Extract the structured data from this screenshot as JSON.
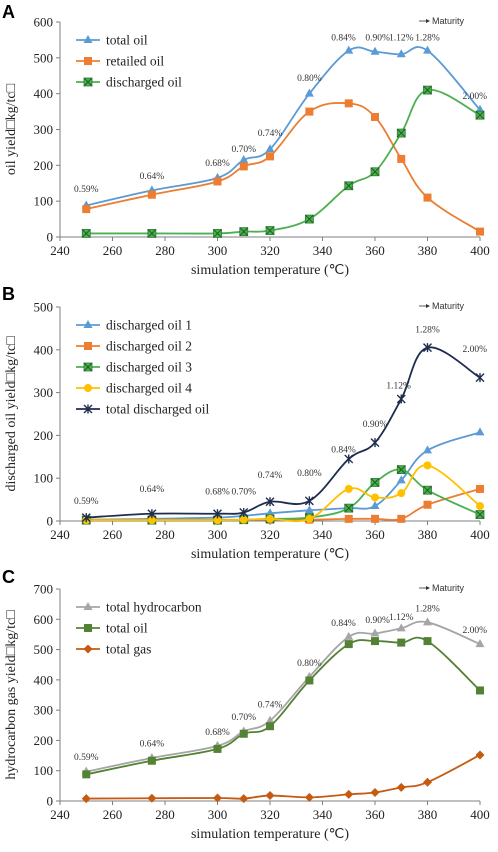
{
  "maturity_label": "Maturity",
  "colors": {
    "blue": "#5b9bd5",
    "orange": "#ed7d31",
    "green": "#4caf50",
    "gold": "#ffc000",
    "navy": "#1f2d4e",
    "gray": "#a5a5a5",
    "dark_green": "#548235",
    "rust": "#c55a11"
  },
  "chart_data": [
    {
      "panel_label": "A",
      "type": "line",
      "xlabel": "simulation temperature (℃)",
      "ylabel": "oil yield□kg/tc□",
      "xlim": [
        240,
        400
      ],
      "ylim": [
        0,
        600
      ],
      "xticks": [
        240,
        260,
        280,
        300,
        320,
        340,
        360,
        380,
        400
      ],
      "yticks": [
        0,
        100,
        200,
        300,
        400,
        500,
        600
      ],
      "legend_position": "top-left",
      "series": [
        {
          "name": "total oil",
          "color": "#5b9bd5",
          "marker": "triangle",
          "points": [
            [
              250,
              88
            ],
            [
              275,
              130
            ],
            [
              300,
              165
            ],
            [
              310,
              215
            ],
            [
              320,
              245
            ],
            [
              335,
              400
            ],
            [
              350,
              520
            ],
            [
              360,
              517
            ],
            [
              370,
              510
            ],
            [
              380,
              520
            ],
            [
              400,
              355
            ]
          ]
        },
        {
          "name": "retailed oil",
          "color": "#ed7d31",
          "marker": "square",
          "points": [
            [
              250,
              78
            ],
            [
              275,
              118
            ],
            [
              300,
              155
            ],
            [
              310,
              197
            ],
            [
              320,
              225
            ],
            [
              335,
              350
            ],
            [
              350,
              373
            ],
            [
              360,
              335
            ],
            [
              370,
              218
            ],
            [
              380,
              110
            ],
            [
              400,
              15
            ]
          ]
        },
        {
          "name": "discharged oil",
          "color": "#4caf50",
          "marker": "xsquare",
          "points": [
            [
              250,
              10
            ],
            [
              275,
              10
            ],
            [
              300,
              10
            ],
            [
              310,
              15
            ],
            [
              320,
              18
            ],
            [
              335,
              50
            ],
            [
              350,
              143
            ],
            [
              360,
              182
            ],
            [
              370,
              290
            ],
            [
              380,
              410
            ],
            [
              400,
              340
            ]
          ]
        }
      ],
      "annotations": [
        {
          "text": "0.59%",
          "x": 250,
          "y": 125
        },
        {
          "text": "0.64%",
          "x": 275,
          "y": 162
        },
        {
          "text": "0.68%",
          "x": 300,
          "y": 198
        },
        {
          "text": "0.70%",
          "x": 310,
          "y": 237
        },
        {
          "text": "0.74%",
          "x": 320,
          "y": 282
        },
        {
          "text": "0.80%",
          "x": 335,
          "y": 435
        },
        {
          "text": "0.84%",
          "x": 348,
          "y": 548
        },
        {
          "text": "0.90%",
          "x": 361,
          "y": 548
        },
        {
          "text": "1.12%",
          "x": 370,
          "y": 548
        },
        {
          "text": "1.28%",
          "x": 380,
          "y": 548
        },
        {
          "text": "2.00%",
          "x": 398,
          "y": 385
        }
      ]
    },
    {
      "panel_label": "B",
      "type": "line",
      "xlabel": "simulation temperature (℃)",
      "ylabel": "discharged oil yield□kg/tc□",
      "xlim": [
        240,
        400
      ],
      "ylim": [
        0,
        500
      ],
      "xticks": [
        240,
        260,
        280,
        300,
        320,
        340,
        360,
        380,
        400
      ],
      "yticks": [
        0,
        100,
        200,
        300,
        400,
        500
      ],
      "legend_position": "top-left",
      "series": [
        {
          "name": "discharged oil 1",
          "color": "#5b9bd5",
          "marker": "triangle",
          "points": [
            [
              250,
              3
            ],
            [
              275,
              5
            ],
            [
              300,
              8
            ],
            [
              310,
              12
            ],
            [
              320,
              18
            ],
            [
              335,
              25
            ],
            [
              350,
              30
            ],
            [
              360,
              35
            ],
            [
              370,
              95
            ],
            [
              380,
              165
            ],
            [
              400,
              207
            ]
          ]
        },
        {
          "name": "discharged oil 2",
          "color": "#ed7d31",
          "marker": "square",
          "points": [
            [
              250,
              3
            ],
            [
              275,
              3
            ],
            [
              300,
              3
            ],
            [
              310,
              3
            ],
            [
              320,
              3
            ],
            [
              335,
              3
            ],
            [
              350,
              5
            ],
            [
              360,
              5
            ],
            [
              370,
              5
            ],
            [
              380,
              38
            ],
            [
              400,
              75
            ]
          ]
        },
        {
          "name": "discharged oil 3",
          "color": "#4caf50",
          "marker": "xsquare",
          "points": [
            [
              250,
              2
            ],
            [
              275,
              2
            ],
            [
              300,
              2
            ],
            [
              310,
              3
            ],
            [
              320,
              5
            ],
            [
              335,
              8
            ],
            [
              350,
              30
            ],
            [
              360,
              90
            ],
            [
              370,
              120
            ],
            [
              380,
              72
            ],
            [
              400,
              15
            ]
          ]
        },
        {
          "name": "discharged oil 4",
          "color": "#ffc000",
          "marker": "circle",
          "points": [
            [
              250,
              2
            ],
            [
              275,
              2
            ],
            [
              300,
              2
            ],
            [
              310,
              3
            ],
            [
              320,
              5
            ],
            [
              335,
              5
            ],
            [
              350,
              75
            ],
            [
              360,
              55
            ],
            [
              370,
              65
            ],
            [
              380,
              130
            ],
            [
              400,
              35
            ]
          ]
        },
        {
          "name": "total discharged oil",
          "color": "#1f2d4e",
          "marker": "star",
          "points": [
            [
              250,
              8
            ],
            [
              275,
              17
            ],
            [
              300,
              17
            ],
            [
              310,
              20
            ],
            [
              320,
              45
            ],
            [
              335,
              47
            ],
            [
              350,
              145
            ],
            [
              360,
              183
            ],
            [
              370,
              285
            ],
            [
              380,
              405
            ],
            [
              400,
              335
            ]
          ]
        }
      ],
      "annotations": [
        {
          "text": "0.59%",
          "x": 250,
          "y": 40
        },
        {
          "text": "0.64%",
          "x": 275,
          "y": 68
        },
        {
          "text": "0.68%",
          "x": 300,
          "y": 62
        },
        {
          "text": "0.70%",
          "x": 310,
          "y": 62
        },
        {
          "text": "0.74%",
          "x": 320,
          "y": 100
        },
        {
          "text": "0.80%",
          "x": 335,
          "y": 105
        },
        {
          "text": "0.84%",
          "x": 348,
          "y": 160
        },
        {
          "text": "0.90%",
          "x": 360,
          "y": 220
        },
        {
          "text": "1.12%",
          "x": 369,
          "y": 310
        },
        {
          "text": "1.28%",
          "x": 380,
          "y": 440
        },
        {
          "text": "2.00%",
          "x": 398,
          "y": 395
        }
      ]
    },
    {
      "panel_label": "C",
      "type": "line",
      "xlabel": "simulation temperature (℃)",
      "ylabel": "hydrocarbon gas yield□kg/tc□",
      "xlim": [
        240,
        400
      ],
      "ylim": [
        0,
        700
      ],
      "xticks": [
        240,
        260,
        280,
        300,
        320,
        340,
        360,
        380,
        400
      ],
      "yticks": [
        0,
        100,
        200,
        300,
        400,
        500,
        600,
        700
      ],
      "legend_position": "top-left",
      "series": [
        {
          "name": "total hydrocarbon",
          "color": "#a5a5a5",
          "marker": "triangle",
          "points": [
            [
              250,
              97
            ],
            [
              275,
              142
            ],
            [
              300,
              182
            ],
            [
              310,
              230
            ],
            [
              320,
              265
            ],
            [
              335,
              410
            ],
            [
              350,
              542
            ],
            [
              360,
              553
            ],
            [
              370,
              570
            ],
            [
              380,
              590
            ],
            [
              400,
              518
            ]
          ]
        },
        {
          "name": "total oil",
          "color": "#548235",
          "marker": "square",
          "points": [
            [
              250,
              88
            ],
            [
              275,
              133
            ],
            [
              300,
              172
            ],
            [
              310,
              222
            ],
            [
              320,
              247
            ],
            [
              335,
              398
            ],
            [
              350,
              518
            ],
            [
              360,
              528
            ],
            [
              370,
              523
            ],
            [
              380,
              528
            ],
            [
              400,
              365
            ]
          ]
        },
        {
          "name": "total gas",
          "color": "#c55a11",
          "marker": "diamond",
          "points": [
            [
              250,
              8
            ],
            [
              275,
              9
            ],
            [
              300,
              10
            ],
            [
              310,
              8
            ],
            [
              320,
              18
            ],
            [
              335,
              12
            ],
            [
              350,
              22
            ],
            [
              360,
              28
            ],
            [
              370,
              45
            ],
            [
              380,
              62
            ],
            [
              400,
              152
            ]
          ]
        }
      ],
      "annotations": [
        {
          "text": "0.59%",
          "x": 250,
          "y": 135
        },
        {
          "text": "0.64%",
          "x": 275,
          "y": 180
        },
        {
          "text": "0.68%",
          "x": 300,
          "y": 218
        },
        {
          "text": "0.70%",
          "x": 310,
          "y": 268
        },
        {
          "text": "0.74%",
          "x": 320,
          "y": 308
        },
        {
          "text": "0.80%",
          "x": 335,
          "y": 445
        },
        {
          "text": "0.84%",
          "x": 348,
          "y": 578
        },
        {
          "text": "0.90%",
          "x": 361,
          "y": 588
        },
        {
          "text": "1.12%",
          "x": 370,
          "y": 598
        },
        {
          "text": "1.28%",
          "x": 380,
          "y": 625
        },
        {
          "text": "2.00%",
          "x": 398,
          "y": 555
        }
      ]
    }
  ]
}
